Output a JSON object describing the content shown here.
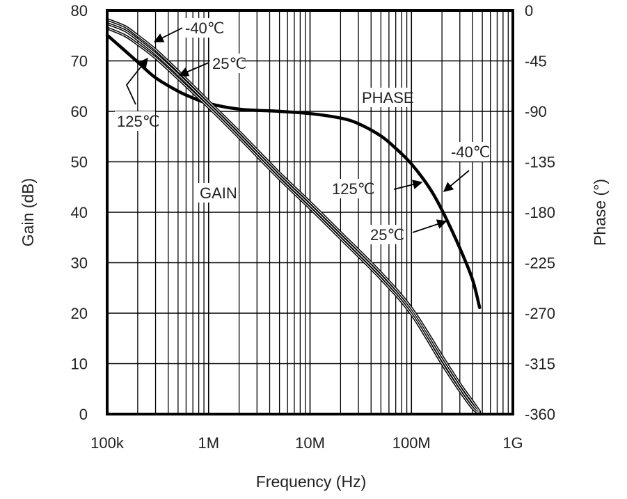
{
  "chart_data": {
    "type": "line",
    "title": "",
    "xlabel": "Frequency (Hz)",
    "ylabel": "Gain (dB)",
    "y2label": "Phase (°)",
    "xscale": "log",
    "xlim": [
      100000,
      1000000000
    ],
    "ylim": [
      0,
      80
    ],
    "y2lim": [
      -360,
      0
    ],
    "grid": true,
    "x_ticks": [
      {
        "value": 100000,
        "label": "100k"
      },
      {
        "value": 1000000,
        "label": "1M"
      },
      {
        "value": 10000000,
        "label": "10M"
      },
      {
        "value": 100000000,
        "label": "100M"
      },
      {
        "value": 1000000000,
        "label": "1G"
      }
    ],
    "y_ticks": [
      {
        "value": 0,
        "label": "0"
      },
      {
        "value": 10,
        "label": "10"
      },
      {
        "value": 20,
        "label": "20"
      },
      {
        "value": 30,
        "label": "30"
      },
      {
        "value": 40,
        "label": "40"
      },
      {
        "value": 50,
        "label": "50"
      },
      {
        "value": 60,
        "label": "60"
      },
      {
        "value": 70,
        "label": "70"
      },
      {
        "value": 80,
        "label": "80"
      }
    ],
    "y2_ticks": [
      {
        "value": 0,
        "label": "0"
      },
      {
        "value": -45,
        "label": "-45"
      },
      {
        "value": -90,
        "label": "-90"
      },
      {
        "value": -135,
        "label": "-135"
      },
      {
        "value": -180,
        "label": "-180"
      },
      {
        "value": -225,
        "label": "-225"
      },
      {
        "value": -270,
        "label": "-270"
      },
      {
        "value": -315,
        "label": "-315"
      },
      {
        "value": -360,
        "label": "-360"
      }
    ],
    "series": [
      {
        "name": "Gain -40℃",
        "axis": "left",
        "x": [
          100000,
          150000,
          200000,
          300000,
          500000,
          1000000,
          2000000,
          5000000,
          10000000,
          20000000,
          50000000,
          100000000,
          200000000,
          300000000,
          400000000,
          470000000
        ],
        "y": [
          78.2,
          76.8,
          75.0,
          72.2,
          68.0,
          62.0,
          56.0,
          47.8,
          42.0,
          36.0,
          28.0,
          21.0,
          11.5,
          6.0,
          2.5,
          0.5
        ]
      },
      {
        "name": "Gain 25℃",
        "axis": "left",
        "x": [
          100000,
          150000,
          200000,
          300000,
          500000,
          1000000,
          2000000,
          5000000,
          10000000,
          20000000,
          50000000,
          100000000,
          200000000,
          300000000,
          400000000,
          470000000
        ],
        "y": [
          77.4,
          76.0,
          74.2,
          71.4,
          67.3,
          61.4,
          55.4,
          47.2,
          41.4,
          35.4,
          27.4,
          20.4,
          10.8,
          5.3,
          1.8,
          0.2
        ]
      },
      {
        "name": "Gain 125℃",
        "axis": "left",
        "x": [
          100000,
          150000,
          200000,
          300000,
          500000,
          1000000,
          2000000,
          5000000,
          10000000,
          20000000,
          50000000,
          100000000,
          200000000,
          300000000,
          400000000,
          470000000
        ],
        "y": [
          76.5,
          75.0,
          73.3,
          70.6,
          66.5,
          60.8,
          54.8,
          46.6,
          40.8,
          34.8,
          26.8,
          19.8,
          10.0,
          4.6,
          1.2,
          0.0
        ]
      },
      {
        "name": "Phase",
        "axis": "right",
        "x": [
          100000,
          150000,
          200000,
          300000,
          500000,
          700000,
          1000000,
          2000000,
          5000000,
          10000000,
          20000000,
          30000000,
          50000000,
          70000000,
          100000000,
          150000000,
          200000000,
          300000000,
          400000000,
          470000000
        ],
        "y": [
          -22,
          -36,
          -46,
          -60,
          -72,
          -78,
          -83,
          -88,
          -90,
          -92,
          -96,
          -101,
          -112,
          -123,
          -137,
          -158,
          -178,
          -212,
          -240,
          -265
        ]
      }
    ],
    "annotations": [
      {
        "text": "-40℃",
        "target": "gain"
      },
      {
        "text": "25℃",
        "target": "gain"
      },
      {
        "text": "125℃",
        "target": "gain"
      },
      {
        "text": "GAIN",
        "target": "gain"
      },
      {
        "text": "PHASE",
        "target": "phase"
      },
      {
        "text": "-40℃",
        "target": "phase"
      },
      {
        "text": "125℃",
        "target": "phase"
      },
      {
        "text": "25℃",
        "target": "phase"
      }
    ]
  }
}
